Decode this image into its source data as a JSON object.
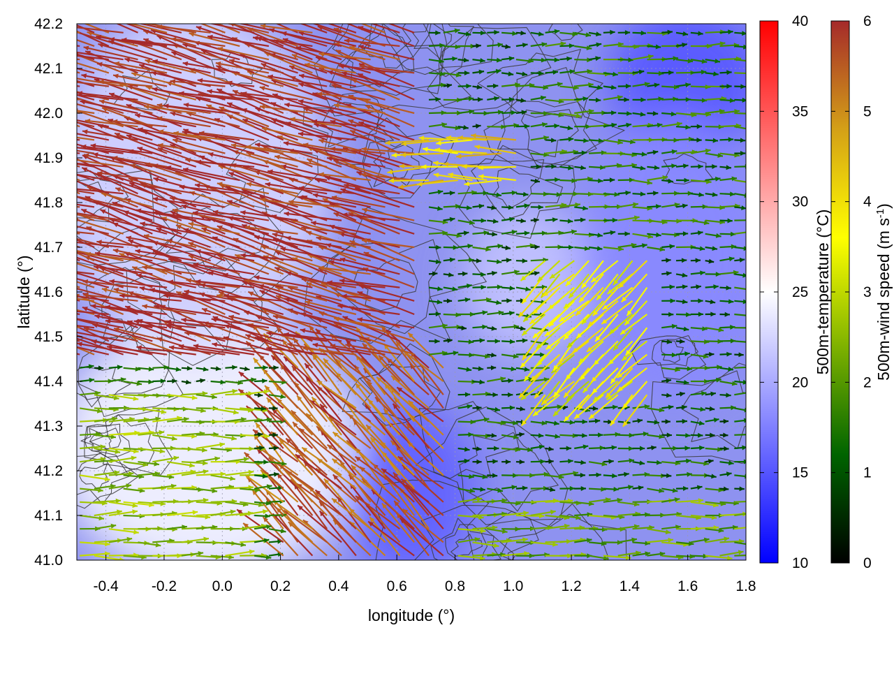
{
  "chart_data": {
    "type": "heatmap",
    "title": "",
    "xlabel": "longitude (°)",
    "ylabel": "latitude (°)",
    "xlim": [
      -0.5,
      1.8
    ],
    "ylim": [
      41.0,
      42.2
    ],
    "x_ticks": [
      "-0.4",
      "-0.2",
      "0.0",
      "0.2",
      "0.4",
      "0.6",
      "0.8",
      "1.0",
      "1.2",
      "1.4",
      "1.6",
      "1.8"
    ],
    "y_ticks": [
      "41.0",
      "41.1",
      "41.2",
      "41.3",
      "41.4",
      "41.5",
      "41.6",
      "41.7",
      "41.8",
      "41.9",
      "42.0",
      "42.1",
      "42.2"
    ],
    "grid": true,
    "layers": [
      {
        "kind": "color-field",
        "quantity": "500m-temperature"
      },
      {
        "kind": "contours",
        "quantity": "terrain elevation",
        "color": "#333333"
      },
      {
        "kind": "vectors",
        "quantity": "500m-wind",
        "color_by": "500m-wind speed"
      }
    ],
    "colorbars": [
      {
        "label": "500m-temperature (°C)",
        "range": [
          10,
          40
        ],
        "ticks": [
          "10",
          "15",
          "20",
          "25",
          "30",
          "35",
          "40"
        ],
        "colors": [
          "#0000ff",
          "#ffffff",
          "#ff0000"
        ]
      },
      {
        "label_main": "500m-wind speed (m s",
        "label_sup": "-1",
        "label_end": ")",
        "range": [
          0,
          6
        ],
        "ticks": [
          "0",
          "1",
          "2",
          "3",
          "4",
          "5",
          "6"
        ],
        "colors": [
          "#000000",
          "#006400",
          "#7fb200",
          "#ffff00",
          "#d4a017",
          "#a52a2a"
        ]
      }
    ],
    "wind_regions": [
      {
        "lon": [
          -0.5,
          0.7
        ],
        "lat": [
          41.45,
          42.2
        ],
        "speed": 6.0,
        "direction": "WNW"
      },
      {
        "lon": [
          0.2,
          0.8
        ],
        "lat": [
          41.0,
          41.45
        ],
        "speed": 5.5,
        "direction": "NW"
      },
      {
        "lon": [
          0.6,
          1.05
        ],
        "lat": [
          41.85,
          41.95
        ],
        "speed": 4.2,
        "direction": "W"
      },
      {
        "lon": [
          1.1,
          1.5
        ],
        "lat": [
          41.35,
          41.7
        ],
        "speed": 3.5,
        "direction": "SW"
      },
      {
        "lon": [
          0.8,
          1.8
        ],
        "lat": [
          41.0,
          41.15
        ],
        "speed": 2.2,
        "direction": "E"
      },
      {
        "lon": [
          1.1,
          1.8
        ],
        "lat": [
          41.7,
          42.2
        ],
        "speed": 1.5,
        "direction": "E"
      },
      {
        "lon": [
          -0.5,
          0.1
        ],
        "lat": [
          41.0,
          41.4
        ],
        "speed": 2.5,
        "direction": "E"
      }
    ],
    "temperature_regions": [
      {
        "lon": [
          -0.5,
          0.4
        ],
        "lat": [
          41.0,
          41.5
        ],
        "value": 24.5
      },
      {
        "lon": [
          -0.5,
          0.3
        ],
        "lat": [
          41.5,
          42.2
        ],
        "value": 22.5
      },
      {
        "lon": [
          0.9,
          1.2
        ],
        "lat": [
          41.5,
          41.75
        ],
        "value": 21.5
      },
      {
        "lon": [
          0.5,
          0.8
        ],
        "lat": [
          41.0,
          41.3
        ],
        "value": 15.5
      },
      {
        "lon": [
          1.4,
          1.8
        ],
        "lat": [
          41.95,
          42.2
        ],
        "value": 15.0
      },
      {
        "lon": [
          1.3,
          1.8
        ],
        "lat": [
          41.4,
          41.95
        ],
        "value": 18.0
      }
    ]
  }
}
